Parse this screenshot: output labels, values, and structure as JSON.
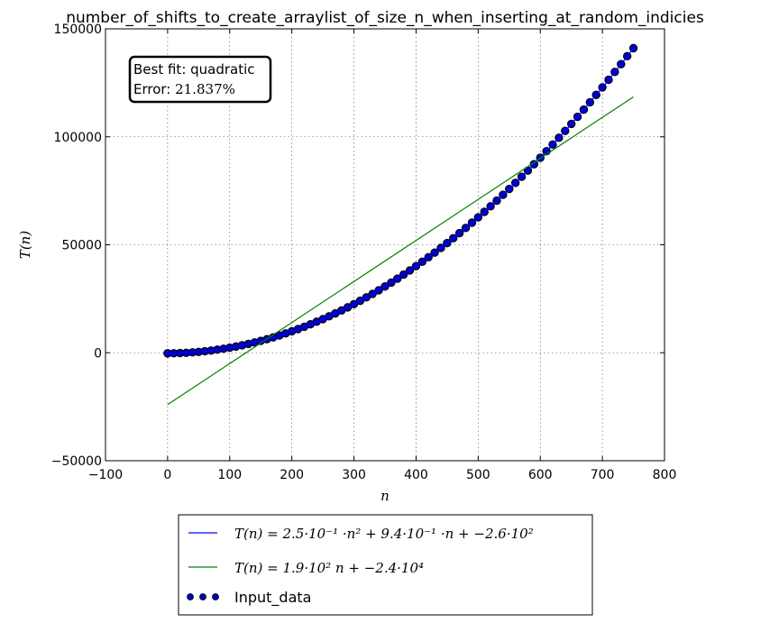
{
  "chart_data": {
    "type": "scatter",
    "title": "number_of_shifts_to_create_arraylist_of_size_n_when_inserting_at_random_indicies",
    "xlabel": "n",
    "ylabel": "T(n)",
    "xlim": [
      -100,
      800
    ],
    "ylim": [
      -50000,
      150000
    ],
    "xticks": [
      -100,
      0,
      100,
      200,
      300,
      400,
      500,
      600,
      700,
      800
    ],
    "yticks": [
      -50000,
      0,
      50000,
      100000,
      150000
    ],
    "xtick_labels": [
      "−100",
      "0",
      "100",
      "200",
      "300",
      "400",
      "500",
      "600",
      "700",
      "800"
    ],
    "ytick_labels": [
      "−50000",
      "0",
      "50000",
      "100000",
      "150000"
    ],
    "grid": true,
    "legend_position": "below",
    "annotation": {
      "line1": "Best fit: quadratic",
      "line2_prefix": "Error: ",
      "line2_value": "21.837%",
      "position": "top-left"
    },
    "series": [
      {
        "name": "Input_data",
        "kind": "scatter",
        "color": "#0000bf",
        "x_start": 0,
        "x_end": 750,
        "x_step": 10,
        "y_formula": "0.25*n^2 + 0.94*n - 260"
      },
      {
        "name": "T(n) = 2.5·10^-1 ·n^2 + 9.4·10^-1 ·n + -2.6·10^2",
        "kind": "line",
        "color": "#0000ff",
        "coefficients": {
          "a": 0.25,
          "b": 0.94,
          "c": -260
        },
        "x_range": [
          0,
          750
        ]
      },
      {
        "name": "T(n) = 1.9·10^2 n + -2.4·10^4",
        "kind": "line",
        "color": "#008000",
        "coefficients": {
          "a": 190,
          "b": -24000
        },
        "x_range": [
          0,
          750
        ]
      }
    ],
    "legend_entries": [
      {
        "label": "T(n) = 2.5·10⁻¹ ·n² + 9.4·10⁻¹ ·n + −2.6·10²",
        "color": "#0000ff",
        "marker": "line"
      },
      {
        "label": "T(n) = 1.9·10² n + −2.4·10⁴",
        "color": "#008000",
        "marker": "line"
      },
      {
        "label": "Input_data",
        "color": "#0000bf",
        "marker": "dots"
      }
    ]
  }
}
